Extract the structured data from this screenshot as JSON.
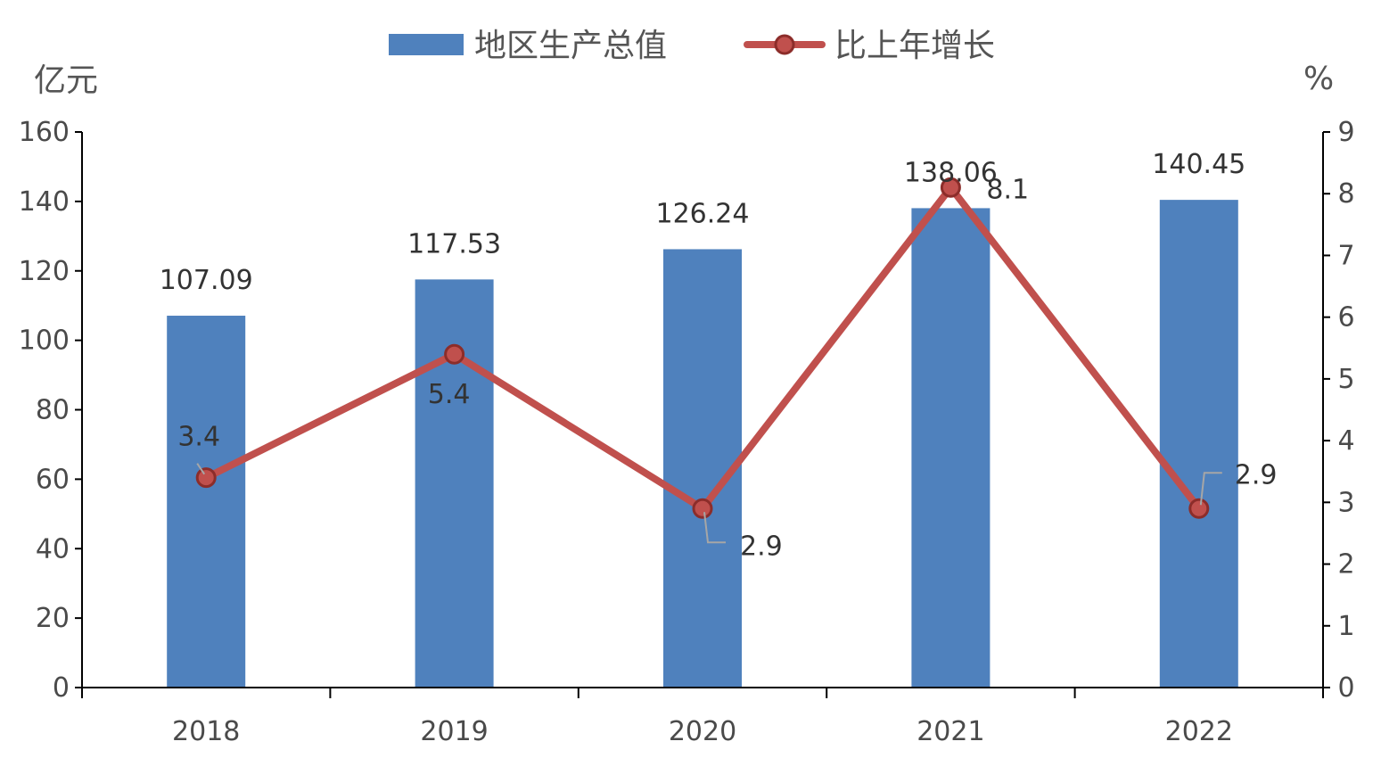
{
  "chart_data": {
    "type": "bar",
    "categories": [
      "2018",
      "2019",
      "2020",
      "2021",
      "2022"
    ],
    "series": [
      {
        "name": "地区生产总值",
        "type": "bar",
        "axis": "left",
        "values": [
          107.09,
          117.53,
          126.24,
          138.06,
          140.45
        ],
        "labels": [
          "107.09",
          "117.53",
          "126.24",
          "138.06",
          "140.45"
        ]
      },
      {
        "name": "比上年增长",
        "type": "line",
        "axis": "right",
        "values": [
          3.4,
          5.4,
          2.9,
          8.1,
          2.9
        ],
        "labels": [
          "3.4",
          "5.4",
          "2.9",
          "8.1",
          "2.9"
        ]
      }
    ],
    "left_axis": {
      "unit": "亿元",
      "min": 0,
      "max": 160,
      "ticks": [
        0,
        20,
        40,
        60,
        80,
        100,
        120,
        140,
        160
      ]
    },
    "right_axis": {
      "unit": "%",
      "min": 0,
      "max": 9,
      "ticks": [
        0,
        1,
        2,
        3,
        4,
        5,
        6,
        7,
        8,
        9
      ]
    },
    "grid": false,
    "legend_position": "top-center",
    "colors": {
      "bar": "#4f81bd",
      "line": "#c0504d",
      "marker_fill": "#c0504d",
      "marker_stroke": "#8c2d2a",
      "axis": "#000000",
      "leader": "#a6a6a6"
    }
  }
}
